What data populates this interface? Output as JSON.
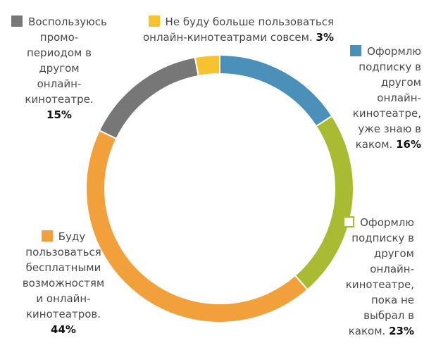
{
  "chart_data": {
    "type": "pie",
    "style": "donut",
    "title": "",
    "slices": [
      {
        "key": "blue",
        "text": "Оформлю подписку в другом онлайн-кинотеатре, уже знаю в каком.",
        "value": 16,
        "pct_label": "16%",
        "color": "#4a90b8"
      },
      {
        "key": "green",
        "text": "Оформлю подписку в другом онлайн-кинотеатре, пока не выбрал в каком.",
        "value": 23,
        "pct_label": "23%",
        "color": "#a8bb32"
      },
      {
        "key": "orange",
        "text": "Буду пользоваться бесплатными возможностям и онлайн-кинотеатров.",
        "value": 44,
        "pct_label": "44%",
        "color": "#f2a03c"
      },
      {
        "key": "gray",
        "text": "Воспользуюсь промо-периодом в другом онлайн-кинотеатре.",
        "value": 15,
        "pct_label": "15%",
        "color": "#777777"
      },
      {
        "key": "yellow",
        "text": "Не буду больше пользоваться онлайн-кинотеатрами совсем.",
        "value": 3,
        "pct_label": "3%",
        "color": "#f6c230"
      }
    ]
  },
  "labels": {
    "gray": {
      "lines": [
        "Воспользуюсь",
        "промо-",
        "периодом в",
        "другом",
        "онлайн-",
        "кинотеатре."
      ],
      "pct": "15%"
    },
    "yellow": {
      "lines": [
        "Не буду больше пользоваться",
        "онлайн-кинотеатрами совсем."
      ],
      "pct": "3%"
    },
    "blue": {
      "lines": [
        "Оформлю",
        "подписку в",
        "другом",
        "онлайн-",
        "кинотеатре,",
        "уже знаю в",
        "каком."
      ],
      "pct": "16%"
    },
    "green": {
      "lines": [
        "Оформлю",
        "подписку в",
        "другом",
        "онлайн-",
        "кинотеатре,",
        "пока не",
        "выбрал в",
        "каком."
      ],
      "pct": "23%"
    },
    "orange": {
      "lines": [
        "Буду",
        "пользоваться",
        "бесплатными",
        "возможностям",
        "и онлайн-",
        "кинотеатров."
      ],
      "pct": "44%"
    }
  }
}
